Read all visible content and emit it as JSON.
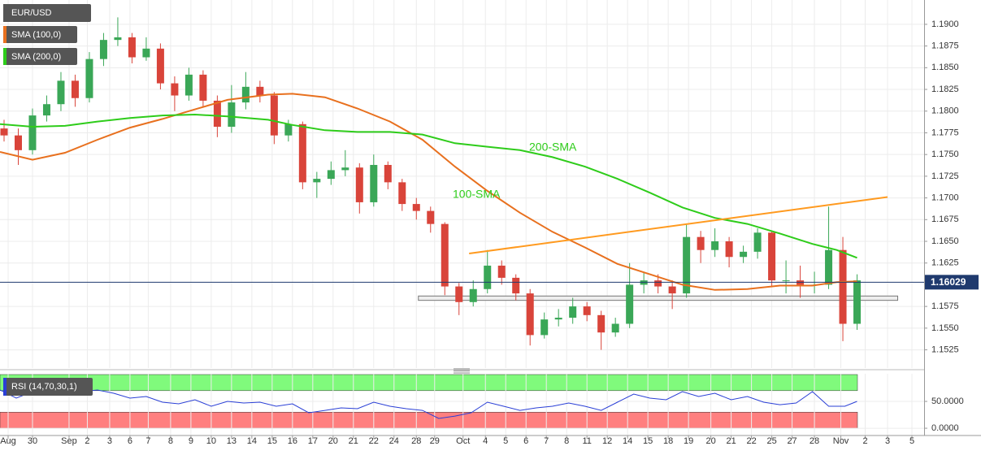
{
  "chart_data": [
    {
      "type": "candlestick",
      "title": "EUR/USD",
      "x": [
        0.2,
        0.9,
        1.6,
        2.3,
        3.0,
        3.7,
        4.4,
        5.1,
        5.8,
        6.5,
        7.2,
        7.9,
        8.6,
        9.3,
        10.0,
        10.7,
        11.4,
        12.1,
        12.8,
        13.5,
        14.2,
        14.9,
        15.6,
        16.3,
        17.0,
        17.7,
        18.4,
        19.1,
        19.8,
        20.5,
        21.2,
        21.9,
        22.6,
        23.3,
        24.0,
        24.7,
        25.4,
        26.1,
        26.8,
        27.5,
        28.2,
        28.9,
        29.6,
        30.3,
        31.0,
        31.7,
        32.4,
        33.1,
        33.8,
        34.5,
        35.2,
        35.9,
        36.6,
        37.3,
        38.0,
        38.7,
        39.4,
        40.1,
        40.8,
        41.5,
        42.2
      ],
      "open": [
        1.178,
        1.1772,
        1.1755,
        1.1795,
        1.1808,
        1.1835,
        1.1815,
        1.186,
        1.1882,
        1.1885,
        1.1862,
        1.1872,
        1.1832,
        1.1818,
        1.1842,
        1.1812,
        1.1782,
        1.181,
        1.1828,
        1.1818,
        1.1772,
        1.1785,
        1.1718,
        1.1722,
        1.1732,
        1.1735,
        1.1695,
        1.1738,
        1.1718,
        1.1693,
        1.1685,
        1.167,
        1.1598,
        1.158,
        1.1595,
        1.1622,
        1.1608,
        1.159,
        1.1542,
        1.156,
        1.1562,
        1.1575,
        1.1565,
        1.1545,
        1.1555,
        1.16,
        1.1605,
        1.1598,
        1.159,
        1.1655,
        1.164,
        1.165,
        1.1632,
        1.1638,
        1.166,
        1.1605,
        1.1605,
        1.16,
        1.16,
        1.164,
        1.1555
      ],
      "high": [
        1.179,
        1.178,
        1.1803,
        1.1818,
        1.1845,
        1.1842,
        1.1868,
        1.189,
        1.1908,
        1.189,
        1.1885,
        1.1878,
        1.184,
        1.185,
        1.1847,
        1.1818,
        1.183,
        1.1845,
        1.1835,
        1.1822,
        1.179,
        1.1788,
        1.173,
        1.1742,
        1.1755,
        1.174,
        1.175,
        1.1742,
        1.1722,
        1.17,
        1.169,
        1.1672,
        1.1602,
        1.1605,
        1.164,
        1.1628,
        1.1612,
        1.1595,
        1.1568,
        1.1572,
        1.1585,
        1.158,
        1.157,
        1.1562,
        1.1625,
        1.1615,
        1.1612,
        1.1605,
        1.167,
        1.1662,
        1.1665,
        1.1655,
        1.1645,
        1.1665,
        1.1662,
        1.1628,
        1.1622,
        1.1615,
        1.169,
        1.1655,
        1.1612
      ],
      "low": [
        1.1765,
        1.1738,
        1.175,
        1.1788,
        1.18,
        1.1805,
        1.181,
        1.1852,
        1.1875,
        1.1855,
        1.1858,
        1.1825,
        1.18,
        1.1812,
        1.1805,
        1.177,
        1.1775,
        1.1802,
        1.181,
        1.1762,
        1.1765,
        1.171,
        1.17,
        1.1715,
        1.1725,
        1.1682,
        1.169,
        1.171,
        1.1685,
        1.1675,
        1.166,
        1.1588,
        1.1565,
        1.1575,
        1.159,
        1.16,
        1.1582,
        1.153,
        1.1538,
        1.1552,
        1.1555,
        1.1558,
        1.1525,
        1.154,
        1.155,
        1.159,
        1.159,
        1.1572,
        1.1585,
        1.1625,
        1.1632,
        1.162,
        1.1625,
        1.163,
        1.1598,
        1.159,
        1.1585,
        1.159,
        1.1595,
        1.1535,
        1.1548
      ],
      "close": [
        1.1772,
        1.1755,
        1.1795,
        1.1808,
        1.1835,
        1.1815,
        1.186,
        1.1882,
        1.1885,
        1.1862,
        1.1872,
        1.1832,
        1.1818,
        1.1842,
        1.1812,
        1.1782,
        1.181,
        1.1828,
        1.1818,
        1.1772,
        1.1785,
        1.1718,
        1.1722,
        1.1732,
        1.1735,
        1.1695,
        1.1738,
        1.1718,
        1.1693,
        1.1685,
        1.167,
        1.1598,
        1.158,
        1.1595,
        1.1622,
        1.1608,
        1.159,
        1.1542,
        1.156,
        1.1562,
        1.1575,
        1.1565,
        1.1545,
        1.1555,
        1.16,
        1.1605,
        1.1598,
        1.159,
        1.1655,
        1.164,
        1.165,
        1.1632,
        1.1638,
        1.166,
        1.1605,
        1.1605,
        1.16,
        1.16,
        1.164,
        1.1555,
        1.1605
      ],
      "up_color": "#3aa757",
      "down_color": "#d9443a",
      "series": [
        {
          "name": "SMA (100,0)",
          "color": "#e8701e",
          "x": [
            0,
            1.6,
            3.2,
            4.8,
            6.4,
            8,
            9.6,
            11.2,
            13.2,
            14.4,
            16,
            17.6,
            19.2,
            20.8,
            22.4,
            24,
            25.6,
            27.2,
            28.8,
            30.4,
            32,
            33.6,
            35.2,
            36.8,
            38.4,
            40,
            41.2,
            42.2
          ],
          "values": [
            1.1753,
            1.1744,
            1.1752,
            1.1767,
            1.1781,
            1.1791,
            1.1802,
            1.1813,
            1.1819,
            1.182,
            1.1816,
            1.1803,
            1.1788,
            1.1767,
            1.1736,
            1.1708,
            1.1683,
            1.1661,
            1.1643,
            1.1624,
            1.1612,
            1.16,
            1.1594,
            1.1595,
            1.1599,
            1.1599,
            1.1603,
            1.1604
          ]
        },
        {
          "name": "SMA (200,0)",
          "color": "#2ecc1a",
          "x": [
            0,
            1.6,
            3.2,
            4.8,
            6.4,
            8,
            9.6,
            11.2,
            13.2,
            14.4,
            16,
            17.6,
            19.2,
            20.8,
            22.4,
            24,
            25.6,
            27.2,
            28.8,
            30.4,
            32,
            33.6,
            35.2,
            36.8,
            38.4,
            40,
            41.2,
            42.2
          ],
          "values": [
            1.1785,
            1.1782,
            1.1783,
            1.1788,
            1.1792,
            1.1795,
            1.1796,
            1.1794,
            1.179,
            1.1784,
            1.1778,
            1.1776,
            1.1776,
            1.1773,
            1.1763,
            1.1759,
            1.1755,
            1.1747,
            1.1736,
            1.1722,
            1.1706,
            1.1689,
            1.1677,
            1.167,
            1.1659,
            1.1647,
            1.164,
            1.1631
          ]
        }
      ],
      "annotations": [
        "200-SMA",
        "100-SMA"
      ],
      "trendline": {
        "x": [
          23.1,
          43.7
        ],
        "values": [
          1.1636,
          1.1701
        ],
        "color": "#ff9a1f"
      },
      "support_zone": {
        "x": [
          20.6,
          44.2
        ],
        "range": [
          1.1582,
          1.1587
        ]
      },
      "last_price": 1.16029,
      "xlim": [
        0,
        45.5
      ],
      "xticks": [
        {
          "value": 0.4,
          "label": "Aug"
        },
        {
          "value": 1.6,
          "label": "30"
        },
        {
          "value": 3.4,
          "label": "Sep"
        },
        {
          "value": 4.3,
          "label": "2"
        },
        {
          "value": 5.4,
          "label": "3"
        },
        {
          "value": 6.4,
          "label": "6"
        },
        {
          "value": 7.3,
          "label": "7"
        },
        {
          "value": 8.4,
          "label": "8"
        },
        {
          "value": 9.4,
          "label": "9"
        },
        {
          "value": 10.4,
          "label": "10"
        },
        {
          "value": 11.4,
          "label": "13"
        },
        {
          "value": 12.4,
          "label": "14"
        },
        {
          "value": 13.4,
          "label": "15"
        },
        {
          "value": 14.4,
          "label": "16"
        },
        {
          "value": 15.4,
          "label": "17"
        },
        {
          "value": 16.4,
          "label": "20"
        },
        {
          "value": 17.4,
          "label": "21"
        },
        {
          "value": 18.4,
          "label": "22"
        },
        {
          "value": 19.4,
          "label": "24"
        },
        {
          "value": 20.5,
          "label": "28"
        },
        {
          "value": 21.4,
          "label": "29"
        },
        {
          "value": 22.8,
          "label": "Oct"
        },
        {
          "value": 23.9,
          "label": "4"
        },
        {
          "value": 24.9,
          "label": "5"
        },
        {
          "value": 25.9,
          "label": "6"
        },
        {
          "value": 26.9,
          "label": "7"
        },
        {
          "value": 27.9,
          "label": "8"
        },
        {
          "value": 28.9,
          "label": "11"
        },
        {
          "value": 29.9,
          "label": "12"
        },
        {
          "value": 30.9,
          "label": "14"
        },
        {
          "value": 31.9,
          "label": "15"
        },
        {
          "value": 32.9,
          "label": "18"
        },
        {
          "value": 33.9,
          "label": "19"
        },
        {
          "value": 35.0,
          "label": "20"
        },
        {
          "value": 36.0,
          "label": "21"
        },
        {
          "value": 37.0,
          "label": "22"
        },
        {
          "value": 38.0,
          "label": "25"
        },
        {
          "value": 39.0,
          "label": "27"
        },
        {
          "value": 40.1,
          "label": "28"
        },
        {
          "value": 41.4,
          "label": "Nov"
        },
        {
          "value": 42.6,
          "label": "2"
        },
        {
          "value": 43.7,
          "label": "3"
        },
        {
          "value": 44.9,
          "label": "5"
        }
      ],
      "ylim": [
        1.1504,
        1.1928
      ],
      "yticks": [
        {
          "value": 1.19,
          "label": "1.1900"
        },
        {
          "value": 1.1875,
          "label": "1.1875"
        },
        {
          "value": 1.185,
          "label": "1.1850"
        },
        {
          "value": 1.1825,
          "label": "1.1825"
        },
        {
          "value": 1.18,
          "label": "1.1800"
        },
        {
          "value": 1.1775,
          "label": "1.1775"
        },
        {
          "value": 1.175,
          "label": "1.1750"
        },
        {
          "value": 1.1725,
          "label": "1.1725"
        },
        {
          "value": 1.17,
          "label": "1.1700"
        },
        {
          "value": 1.1675,
          "label": "1.1675"
        },
        {
          "value": 1.165,
          "label": "1.1650"
        },
        {
          "value": 1.1625,
          "label": "1.1625"
        },
        {
          "value": 1.1575,
          "label": "1.1575"
        },
        {
          "value": 1.155,
          "label": "1.1550"
        },
        {
          "value": 1.1525,
          "label": "1.1525"
        }
      ],
      "grid": true
    },
    {
      "type": "line",
      "title": "RSI (14,70,30,1)",
      "color": "#2a3fd6",
      "x": [
        0,
        0.8,
        1.6,
        2.4,
        3.2,
        4.0,
        4.8,
        5.6,
        6.4,
        7.2,
        8.0,
        8.8,
        9.6,
        10.4,
        11.2,
        12.0,
        12.8,
        13.6,
        14.4,
        15.2,
        16.0,
        16.8,
        17.6,
        18.4,
        19.2,
        20.0,
        20.8,
        21.6,
        22.4,
        23.2,
        24.0,
        24.8,
        25.6,
        26.4,
        27.2,
        28.0,
        28.8,
        29.6,
        30.4,
        31.2,
        32.0,
        32.8,
        33.6,
        34.4,
        35.2,
        36.0,
        36.8,
        37.6,
        38.4,
        39.2,
        40.0,
        40.8,
        41.6,
        42.2
      ],
      "values": [
        71.2,
        56.1,
        68.2,
        63.6,
        71.2,
        68.2,
        71.2,
        65.2,
        56.1,
        59.1,
        48.5,
        45.5,
        53.0,
        40.9,
        50.0,
        47.0,
        48.5,
        40.9,
        45.5,
        28.8,
        33.3,
        37.9,
        36.4,
        48.5,
        40.9,
        36.4,
        33.3,
        18.2,
        22.7,
        28.8,
        48.5,
        40.9,
        33.3,
        37.9,
        40.9,
        47.0,
        40.9,
        33.3,
        48.5,
        63.6,
        56.1,
        53.0,
        68.2,
        59.1,
        65.2,
        53.0,
        59.1,
        48.5,
        43.9,
        47.0,
        68.2,
        40.9,
        40.9,
        50.0
      ],
      "bands": [
        {
          "range": [
            70,
            100
          ],
          "color": "#80fa7c"
        },
        {
          "range": [
            0,
            30
          ],
          "color": "#ff7f7f"
        }
      ],
      "ylim": [
        -12,
        101.5
      ],
      "yticks": [
        {
          "value": 50,
          "label": "50.0000"
        },
        {
          "value": 0,
          "label": "0.0000"
        }
      ]
    }
  ]
}
